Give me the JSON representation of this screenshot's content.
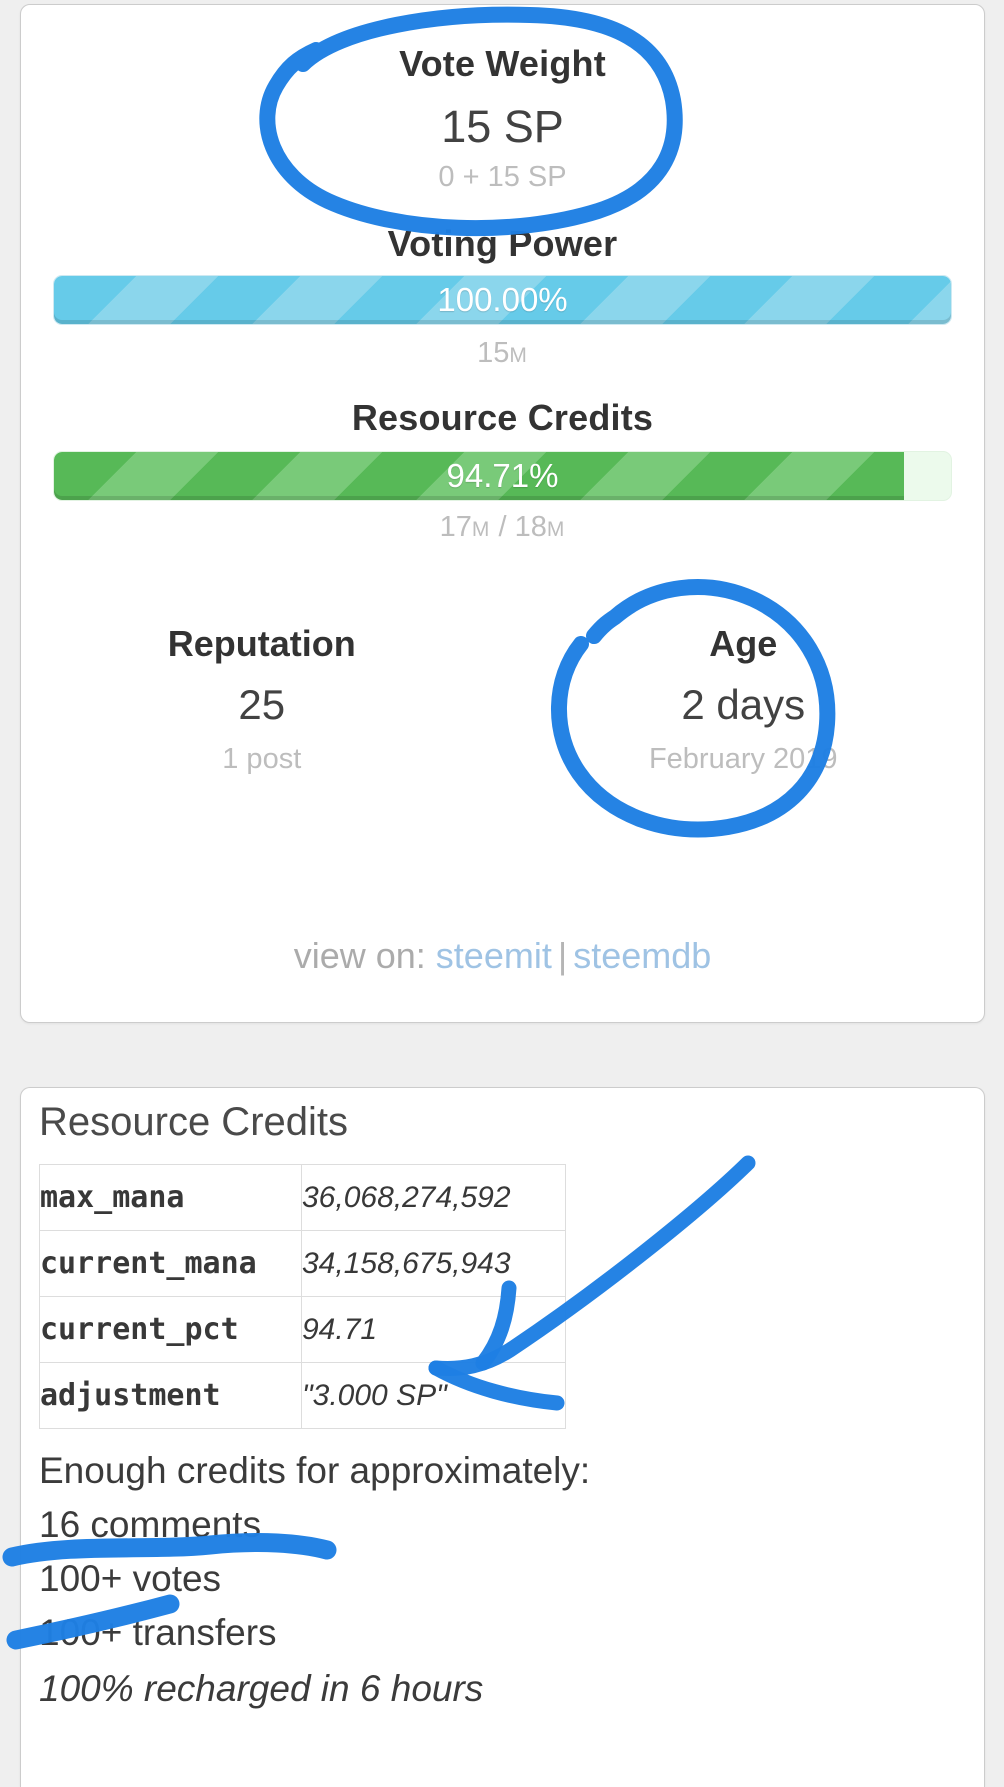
{
  "colors": {
    "page_background": "#efefef",
    "bar_blue": "#66cbe9",
    "bar_blue_stripe": "#8bd6ec",
    "bar_green": "#57b957",
    "bar_green_stripe": "#79ca79",
    "bar_green_track": "#ecfaec",
    "annotation": "#1e7fe3",
    "link": "#9fc3e4",
    "muted_text": "#bdbdbd"
  },
  "account_card": {
    "vote_weight": {
      "label": "Vote Weight",
      "value": "15 SP",
      "sub": "0 + 15 SP"
    },
    "voting_power": {
      "label": "Voting Power",
      "percent": "100.00%",
      "fill_pct": 100,
      "mana": "15",
      "mana_unit": "M"
    },
    "resource_credits": {
      "label": "Resource Credits",
      "percent": "94.71%",
      "fill_pct": 94.71,
      "mana_current": "17",
      "mana_unit_current": "M",
      "mana_separator": " / ",
      "mana_max": "18",
      "mana_unit_max": "M"
    },
    "reputation": {
      "label": "Reputation",
      "value": "25",
      "sub": "1 post"
    },
    "age": {
      "label": "Age",
      "value": "2 days",
      "sub": "February 2019"
    },
    "view_on": {
      "prefix": "view on: ",
      "link1": "steemit",
      "divider": "|",
      "link2": "steemdb"
    }
  },
  "rc_card": {
    "title": "Resource Credits",
    "table": {
      "rows": [
        {
          "key": "max_mana",
          "value": "36,068,274,592"
        },
        {
          "key": "current_mana",
          "value": "34,158,675,943"
        },
        {
          "key": "current_pct",
          "value": "94.71"
        },
        {
          "key": "adjustment",
          "value": "\"3.000 SP\""
        }
      ]
    },
    "enough_line": "Enough credits for approximately:",
    "capabilities": [
      "16 comments",
      "100+ votes",
      "100+ transfers"
    ],
    "recharge_note": "100% recharged in 6 hours"
  }
}
